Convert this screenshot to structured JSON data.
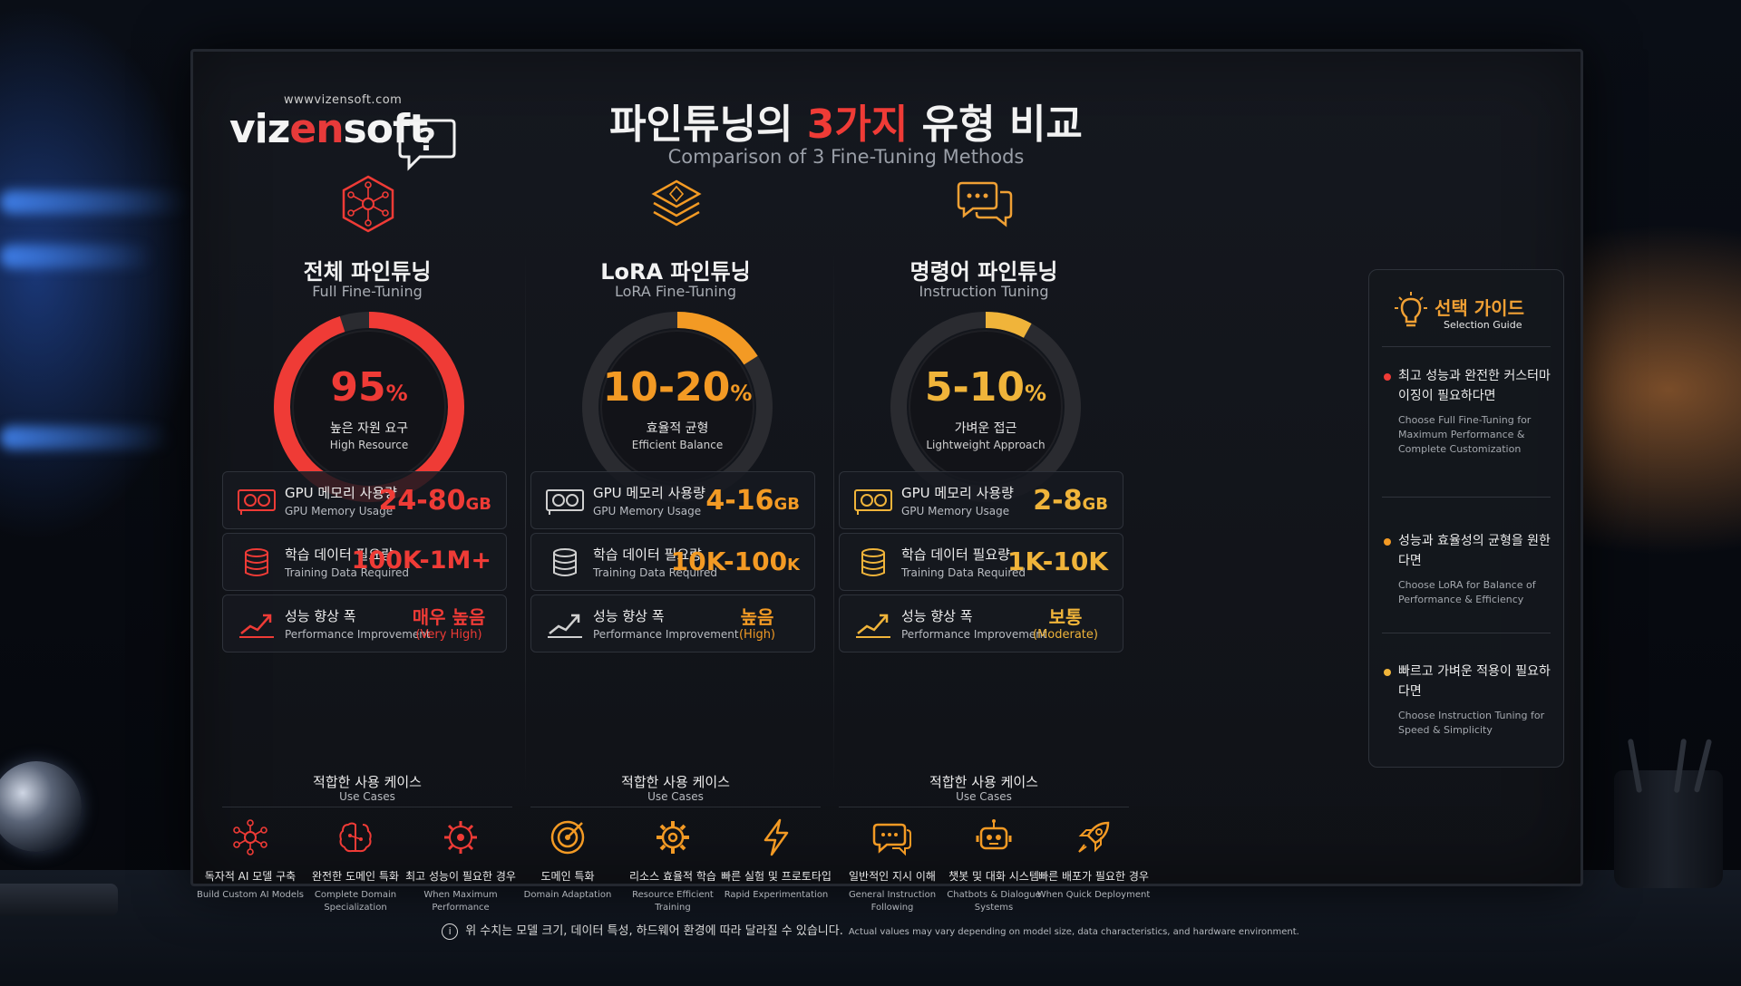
{
  "brand": {
    "url": "wwwvizensoft.com",
    "name_a": "viz",
    "name_b": "en",
    "name_c": "soft"
  },
  "header": {
    "title_pre": "파인튜닝의 ",
    "title_accent": "3가지",
    "title_post": " 유형 비교",
    "subtitle": "Comparison of 3 Fine-Tuning Methods"
  },
  "colors": {
    "red": "#ef3b36",
    "orange": "#f39a24",
    "gold": "#f0b43a"
  },
  "columns": [
    {
      "title": "전체 파인튜닝",
      "subtitle": "Full Fine-Tuning",
      "icon": "network-cube-icon",
      "gauge": {
        "value": "95",
        "unit": "%",
        "label_ko": "높은 자원 요구",
        "label_en": "High Resource",
        "fill": 0.95
      },
      "metrics": [
        {
          "ko": "GPU 메모리 사용량",
          "en": "GPU Memory Usage",
          "value": "24-80",
          "unit": "GB"
        },
        {
          "ko": "학습 데이터 필요량",
          "en": "Training Data Required",
          "value": "100K-1M+",
          "unit": ""
        },
        {
          "ko": "성능 향상 폭",
          "en": "Performance Improvement",
          "word": "매우 높음",
          "word_en": "(Very High)"
        }
      ],
      "use_cases_title": "적합한 사용 케이스",
      "use_cases_sub": "Use Cases",
      "use_cases": [
        {
          "ko": "독자적 AI 모델 구축",
          "en": "Build Custom AI Models",
          "icon": "network-icon"
        },
        {
          "ko": "완전한 도메인 특화",
          "en": "Complete Domain Specialization",
          "icon": "brain-icon"
        },
        {
          "ko": "최고 성능이 필요한 경우",
          "en": "When Maximum Performance",
          "icon": "gear-brain-icon"
        }
      ]
    },
    {
      "title": "LoRA 파인튜닝",
      "subtitle": "LoRA Fine-Tuning",
      "icon": "layers-icon",
      "gauge": {
        "value": "10-20",
        "unit": "%",
        "label_ko": "효율적 균형",
        "label_en": "Efficient Balance",
        "fill": 0.16
      },
      "metrics": [
        {
          "ko": "GPU 메모리 사용량",
          "en": "GPU Memory Usage",
          "value": "4-16",
          "unit": "GB"
        },
        {
          "ko": "학습 데이터 필요량",
          "en": "Training Data Required",
          "value": "10K-100",
          "unit": "K"
        },
        {
          "ko": "성능 향상 폭",
          "en": "Performance Improvement",
          "word": "높음",
          "word_en": "(High)"
        }
      ],
      "use_cases_title": "적합한 사용 케이스",
      "use_cases_sub": "Use Cases",
      "use_cases": [
        {
          "ko": "도메인 특화",
          "en": "Domain Adaptation",
          "icon": "target-icon"
        },
        {
          "ko": "리소스 효율적 학습",
          "en": "Resource Efficient Training",
          "icon": "gear-icon"
        },
        {
          "ko": "빠른 실험 및 프로토타입",
          "en": "Rapid Experimentation",
          "icon": "lightning-icon"
        }
      ]
    },
    {
      "title": "명령어 파인튜닝",
      "subtitle": "Instruction Tuning",
      "icon": "chat-bubbles-icon",
      "gauge": {
        "value": "5-10",
        "unit": "%",
        "label_ko": "가벼운 접근",
        "label_en": "Lightweight Approach",
        "fill": 0.08
      },
      "metrics": [
        {
          "ko": "GPU 메모리 사용량",
          "en": "GPU Memory Usage",
          "value": "2-8",
          "unit": "GB"
        },
        {
          "ko": "학습 데이터 필요량",
          "en": "Training Data Required",
          "value": "1K-10K",
          "unit": ""
        },
        {
          "ko": "성능 향상 폭",
          "en": "Performance Improvement",
          "word": "보통",
          "word_en": "(Moderate)"
        }
      ],
      "use_cases_title": "적합한 사용 케이스",
      "use_cases_sub": "Use Cases",
      "use_cases": [
        {
          "ko": "일반적인 지시 이해",
          "en": "General Instruction Following",
          "icon": "chat-icon"
        },
        {
          "ko": "챗봇 및 대화 시스템",
          "en": "Chatbots & Dialogue Systems",
          "icon": "robot-icon"
        },
        {
          "ko": "빠른 배포가 필요한 경우",
          "en": "When Quick Deployment",
          "icon": "rocket-icon"
        }
      ]
    }
  ],
  "guide": {
    "title": "선택 가이드",
    "subtitle": "Selection Guide",
    "items": [
      {
        "ko": "최고 성능과 완전한 커스터마이징이 필요하다면",
        "en": "Choose Full Fine-Tuning for Maximum Performance & Complete Customization"
      },
      {
        "ko": "성능과 효율성의 균형을 원한다면",
        "en": "Choose LoRA for Balance of Performance & Efficiency"
      },
      {
        "ko": "빠르고 가벼운 적용이 필요하다면",
        "en": "Choose Instruction Tuning for Speed & Simplicity"
      }
    ]
  },
  "footnote": {
    "ko": "위 수치는 모델 크기, 데이터 특성, 하드웨어 환경에 따라 달라질 수 있습니다.",
    "en": "Actual values may vary depending on model size, data characteristics, and hardware environment."
  }
}
